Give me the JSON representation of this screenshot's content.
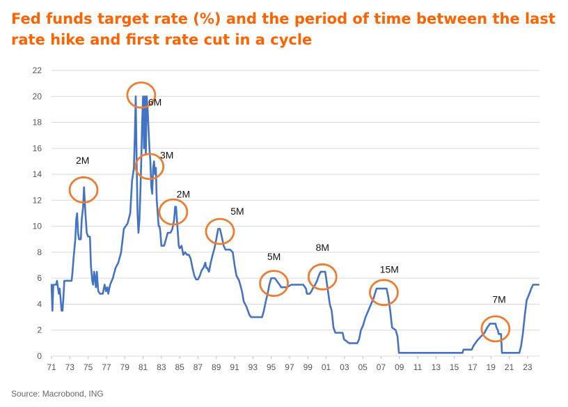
{
  "title": "Fed funds target rate (%) and the period of time between the last rate hike and first rate cut in a cycle",
  "source": "Source: Macrobond, ING",
  "colors": {
    "title": "#ff6200",
    "line": "#4472c4",
    "circle": "#ed7d31",
    "grid": "#d9d9d9"
  },
  "chart_data": {
    "type": "line",
    "title": "Fed funds target rate (%) and the period of time between the last rate hike and first rate cut in a cycle",
    "xlabel": "",
    "ylabel": "",
    "xlim": [
      1971,
      2024.3
    ],
    "ylim": [
      0,
      22
    ],
    "y_ticks": [
      "0",
      "2",
      "4",
      "6",
      "8",
      "10",
      "12",
      "14",
      "16",
      "18",
      "20",
      "22"
    ],
    "x_ticks": [
      "71",
      "73",
      "75",
      "77",
      "79",
      "81",
      "83",
      "85",
      "87",
      "89",
      "91",
      "93",
      "95",
      "97",
      "99",
      "01",
      "03",
      "05",
      "07",
      "09",
      "11",
      "13",
      "15",
      "17",
      "19",
      "21",
      "23"
    ],
    "grid": "horizontal",
    "series": [
      {
        "values": [
          [
            1971.0,
            5.5
          ],
          [
            1971.1,
            3.5
          ],
          [
            1971.2,
            5.5
          ],
          [
            1971.5,
            5.5
          ],
          [
            1971.6,
            5.8
          ],
          [
            1971.8,
            4.8
          ],
          [
            1971.9,
            5.2
          ],
          [
            1972.1,
            3.5
          ],
          [
            1972.2,
            3.5
          ],
          [
            1972.3,
            4.5
          ],
          [
            1972.4,
            5.8
          ],
          [
            1973.0,
            5.8
          ],
          [
            1973.2,
            5.8
          ],
          [
            1973.3,
            6.5
          ],
          [
            1973.4,
            7.5
          ],
          [
            1973.6,
            9.0
          ],
          [
            1973.7,
            10.5
          ],
          [
            1973.8,
            11.0
          ],
          [
            1973.9,
            9.5
          ],
          [
            1974.0,
            9.0
          ],
          [
            1974.2,
            9.0
          ],
          [
            1974.3,
            10.5
          ],
          [
            1974.45,
            11.5
          ],
          [
            1974.55,
            13.0
          ],
          [
            1974.7,
            11.0
          ],
          [
            1974.85,
            9.5
          ],
          [
            1975.0,
            9.2
          ],
          [
            1975.2,
            9.2
          ],
          [
            1975.3,
            7.0
          ],
          [
            1975.45,
            5.8
          ],
          [
            1975.55,
            5.5
          ],
          [
            1975.65,
            6.5
          ],
          [
            1975.75,
            6.0
          ],
          [
            1975.85,
            5.3
          ],
          [
            1975.95,
            6.5
          ],
          [
            1976.1,
            5.0
          ],
          [
            1976.3,
            4.8
          ],
          [
            1976.6,
            4.8
          ],
          [
            1976.8,
            5.5
          ],
          [
            1976.95,
            5.0
          ],
          [
            1977.1,
            5.3
          ],
          [
            1977.2,
            4.8
          ],
          [
            1977.4,
            5.5
          ],
          [
            1977.7,
            6.0
          ],
          [
            1978.0,
            6.8
          ],
          [
            1978.3,
            7.2
          ],
          [
            1978.6,
            8.0
          ],
          [
            1978.9,
            9.8
          ],
          [
            1979.1,
            10.0
          ],
          [
            1979.3,
            10.2
          ],
          [
            1979.6,
            11.0
          ],
          [
            1979.8,
            13.5
          ],
          [
            1979.9,
            14.0
          ],
          [
            1980.0,
            14.5
          ],
          [
            1980.1,
            17.0
          ],
          [
            1980.2,
            20.0
          ],
          [
            1980.3,
            15.0
          ],
          [
            1980.4,
            11.0
          ],
          [
            1980.5,
            9.5
          ],
          [
            1980.6,
            10.5
          ],
          [
            1980.7,
            12.5
          ],
          [
            1980.8,
            15.0
          ],
          [
            1980.9,
            18.0
          ],
          [
            1981.0,
            20.0
          ],
          [
            1981.1,
            16.0
          ],
          [
            1981.2,
            20.0
          ],
          [
            1981.3,
            15.5
          ],
          [
            1981.4,
            20.0
          ],
          [
            1981.5,
            19.0
          ],
          [
            1981.6,
            17.5
          ],
          [
            1981.7,
            16.0
          ],
          [
            1981.8,
            15.0
          ],
          [
            1981.9,
            13.0
          ],
          [
            1982.0,
            12.5
          ],
          [
            1982.1,
            14.5
          ],
          [
            1982.2,
            15.0
          ],
          [
            1982.3,
            14.0
          ],
          [
            1982.4,
            14.5
          ],
          [
            1982.5,
            12.0
          ],
          [
            1982.6,
            11.0
          ],
          [
            1982.7,
            10.0
          ],
          [
            1982.8,
            10.0
          ],
          [
            1982.9,
            9.5
          ],
          [
            1983.0,
            8.5
          ],
          [
            1983.3,
            8.5
          ],
          [
            1983.5,
            9.0
          ],
          [
            1983.7,
            9.5
          ],
          [
            1984.0,
            9.5
          ],
          [
            1984.2,
            9.8
          ],
          [
            1984.4,
            10.5
          ],
          [
            1984.5,
            11.5
          ],
          [
            1984.6,
            11.5
          ],
          [
            1984.7,
            10.5
          ],
          [
            1984.8,
            9.5
          ],
          [
            1984.9,
            8.5
          ],
          [
            1985.0,
            8.3
          ],
          [
            1985.2,
            8.5
          ],
          [
            1985.4,
            7.8
          ],
          [
            1985.6,
            8.0
          ],
          [
            1985.8,
            7.8
          ],
          [
            1986.0,
            7.8
          ],
          [
            1986.2,
            7.5
          ],
          [
            1986.4,
            6.8
          ],
          [
            1986.6,
            6.2
          ],
          [
            1986.8,
            5.9
          ],
          [
            1987.0,
            5.9
          ],
          [
            1987.2,
            6.2
          ],
          [
            1987.4,
            6.6
          ],
          [
            1987.6,
            6.8
          ],
          [
            1987.8,
            7.2
          ],
          [
            1987.9,
            6.8
          ],
          [
            1988.0,
            6.8
          ],
          [
            1988.2,
            6.5
          ],
          [
            1988.4,
            7.2
          ],
          [
            1988.6,
            7.8
          ],
          [
            1988.8,
            8.3
          ],
          [
            1989.0,
            9.0
          ],
          [
            1989.2,
            9.8
          ],
          [
            1989.4,
            9.8
          ],
          [
            1989.6,
            9.2
          ],
          [
            1989.8,
            8.5
          ],
          [
            1990.0,
            8.2
          ],
          [
            1990.5,
            8.2
          ],
          [
            1990.8,
            8.0
          ],
          [
            1991.0,
            7.0
          ],
          [
            1991.2,
            6.2
          ],
          [
            1991.5,
            5.8
          ],
          [
            1991.8,
            5.0
          ],
          [
            1992.0,
            4.2
          ],
          [
            1992.3,
            3.8
          ],
          [
            1992.6,
            3.2
          ],
          [
            1992.8,
            3.0
          ],
          [
            1993.5,
            3.0
          ],
          [
            1994.0,
            3.0
          ],
          [
            1994.2,
            3.5
          ],
          [
            1994.4,
            4.2
          ],
          [
            1994.6,
            4.8
          ],
          [
            1994.8,
            5.5
          ],
          [
            1995.0,
            6.0
          ],
          [
            1995.4,
            6.0
          ],
          [
            1995.6,
            5.8
          ],
          [
            1995.9,
            5.5
          ],
          [
            1996.1,
            5.3
          ],
          [
            1996.7,
            5.3
          ],
          [
            1997.2,
            5.5
          ],
          [
            1998.5,
            5.5
          ],
          [
            1998.8,
            5.2
          ],
          [
            1998.9,
            4.8
          ],
          [
            1999.2,
            4.8
          ],
          [
            1999.4,
            5.0
          ],
          [
            1999.6,
            5.3
          ],
          [
            1999.8,
            5.5
          ],
          [
            2000.0,
            5.8
          ],
          [
            2000.2,
            6.2
          ],
          [
            2000.4,
            6.5
          ],
          [
            2000.9,
            6.5
          ],
          [
            2001.0,
            6.0
          ],
          [
            2001.2,
            5.0
          ],
          [
            2001.4,
            4.0
          ],
          [
            2001.6,
            3.5
          ],
          [
            2001.8,
            2.2
          ],
          [
            2002.0,
            1.8
          ],
          [
            2002.8,
            1.8
          ],
          [
            2002.95,
            1.3
          ],
          [
            2003.5,
            1.0
          ],
          [
            2004.4,
            1.0
          ],
          [
            2004.6,
            1.3
          ],
          [
            2004.8,
            2.0
          ],
          [
            2005.0,
            2.3
          ],
          [
            2005.3,
            3.0
          ],
          [
            2005.6,
            3.5
          ],
          [
            2005.9,
            4.0
          ],
          [
            2006.2,
            4.5
          ],
          [
            2006.5,
            5.2
          ],
          [
            2007.6,
            5.2
          ],
          [
            2007.8,
            4.5
          ],
          [
            2008.0,
            3.5
          ],
          [
            2008.2,
            2.2
          ],
          [
            2008.6,
            2.0
          ],
          [
            2008.8,
            1.5
          ],
          [
            2008.95,
            0.25
          ],
          [
            2015.9,
            0.25
          ],
          [
            2016.0,
            0.5
          ],
          [
            2016.9,
            0.5
          ],
          [
            2017.1,
            0.8
          ],
          [
            2017.5,
            1.2
          ],
          [
            2017.9,
            1.5
          ],
          [
            2018.3,
            1.8
          ],
          [
            2018.6,
            2.2
          ],
          [
            2018.9,
            2.5
          ],
          [
            2019.5,
            2.5
          ],
          [
            2019.6,
            2.2
          ],
          [
            2019.75,
            2.0
          ],
          [
            2019.85,
            1.7
          ],
          [
            2020.1,
            1.7
          ],
          [
            2020.2,
            0.25
          ],
          [
            2022.1,
            0.25
          ],
          [
            2022.3,
            0.8
          ],
          [
            2022.5,
            1.8
          ],
          [
            2022.7,
            3.2
          ],
          [
            2022.9,
            4.3
          ],
          [
            2023.2,
            4.8
          ],
          [
            2023.4,
            5.2
          ],
          [
            2023.6,
            5.5
          ],
          [
            2024.2,
            5.5
          ]
        ]
      }
    ],
    "annotations": [
      {
        "label": "2M",
        "circle": [
          1974.5,
          12.8
        ],
        "text": [
          1974.4,
          14.8
        ]
      },
      {
        "label": "6M",
        "circle": [
          1980.8,
          20.1
        ],
        "text": [
          1982.3,
          19.3
        ]
      },
      {
        "label": "3M",
        "circle": [
          1981.7,
          14.6
        ],
        "text": [
          1983.6,
          15.2
        ]
      },
      {
        "label": "2M",
        "circle": [
          1984.3,
          11.1
        ],
        "text": [
          1985.4,
          12.2
        ]
      },
      {
        "label": "5M",
        "circle": [
          1989.4,
          9.6
        ],
        "text": [
          1991.3,
          10.9
        ]
      },
      {
        "label": "5M",
        "circle": [
          1995.3,
          5.6
        ],
        "text": [
          1995.3,
          7.4
        ]
      },
      {
        "label": "8M",
        "circle": [
          2000.6,
          6.1
        ],
        "text": [
          2000.6,
          8.1
        ]
      },
      {
        "label": "15M",
        "circle": [
          2007.3,
          4.9
        ],
        "text": [
          2007.9,
          6.4
        ]
      },
      {
        "label": "7M",
        "circle": [
          2019.5,
          2.1
        ],
        "text": [
          2019.9,
          4.1
        ]
      }
    ]
  }
}
